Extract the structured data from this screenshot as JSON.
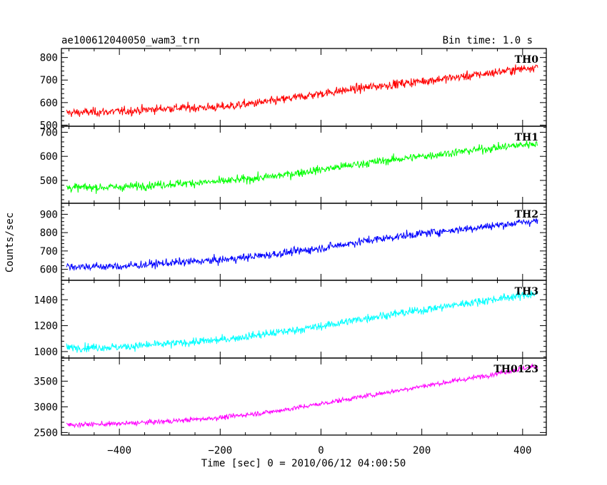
{
  "chart_data": {
    "type": "line",
    "title": "ae100612040050_wam3_trn",
    "subtitle": "Bin time: 1.0 s",
    "xlabel": "Time [sec] 0 = 2010/06/12 04:00:50",
    "ylabel": "Counts/sec",
    "xlim": [
      -515,
      447
    ],
    "x_ticks": [
      -400,
      -200,
      0,
      200,
      400
    ],
    "x_tick_labels": [
      "−400",
      "−200",
      "0",
      "200",
      "400"
    ],
    "x_start": -505,
    "x_end": 430,
    "bin": 1.0,
    "panels": [
      {
        "name": "TH0",
        "color": "#ff0000",
        "ylim": [
          495,
          840
        ],
        "y_ticks": [
          500,
          600,
          700,
          800
        ],
        "trend": [
          [
            -505,
            555
          ],
          [
            -400,
            560
          ],
          [
            -300,
            575
          ],
          [
            -200,
            580
          ],
          [
            -100,
            605
          ],
          [
            0,
            640
          ],
          [
            100,
            670
          ],
          [
            200,
            695
          ],
          [
            300,
            720
          ],
          [
            430,
            760
          ]
        ],
        "noise": 25
      },
      {
        "name": "TH1",
        "color": "#00ff00",
        "ylim": [
          405,
          725
        ],
        "y_ticks": [
          500,
          600,
          700
        ],
        "trend": [
          [
            -505,
            470
          ],
          [
            -400,
            472
          ],
          [
            -300,
            485
          ],
          [
            -200,
            495
          ],
          [
            -100,
            515
          ],
          [
            0,
            545
          ],
          [
            100,
            575
          ],
          [
            200,
            600
          ],
          [
            300,
            625
          ],
          [
            430,
            655
          ]
        ],
        "noise": 22
      },
      {
        "name": "TH2",
        "color": "#0000ff",
        "ylim": [
          540,
          960
        ],
        "y_ticks": [
          600,
          700,
          800,
          900
        ],
        "trend": [
          [
            -505,
            615
          ],
          [
            -400,
            615
          ],
          [
            -300,
            635
          ],
          [
            -200,
            650
          ],
          [
            -100,
            680
          ],
          [
            0,
            715
          ],
          [
            100,
            760
          ],
          [
            200,
            795
          ],
          [
            300,
            825
          ],
          [
            430,
            865
          ]
        ],
        "noise": 28
      },
      {
        "name": "TH3",
        "color": "#00ffff",
        "ylim": [
          950,
          1550
        ],
        "y_ticks": [
          1000,
          1200,
          1400
        ],
        "trend": [
          [
            -505,
            1030
          ],
          [
            -400,
            1035
          ],
          [
            -300,
            1060
          ],
          [
            -200,
            1090
          ],
          [
            -100,
            1140
          ],
          [
            0,
            1195
          ],
          [
            100,
            1265
          ],
          [
            200,
            1320
          ],
          [
            300,
            1380
          ],
          [
            430,
            1450
          ]
        ],
        "noise": 40
      },
      {
        "name": "TH0123",
        "color": "#ff00ff",
        "ylim": [
          2450,
          3950
        ],
        "y_ticks": [
          2500,
          3000,
          3500
        ],
        "trend": [
          [
            -505,
            2650
          ],
          [
            -400,
            2670
          ],
          [
            -300,
            2720
          ],
          [
            -200,
            2790
          ],
          [
            -100,
            2900
          ],
          [
            0,
            3060
          ],
          [
            100,
            3230
          ],
          [
            200,
            3400
          ],
          [
            300,
            3560
          ],
          [
            430,
            3800
          ]
        ],
        "noise": 60
      }
    ]
  }
}
